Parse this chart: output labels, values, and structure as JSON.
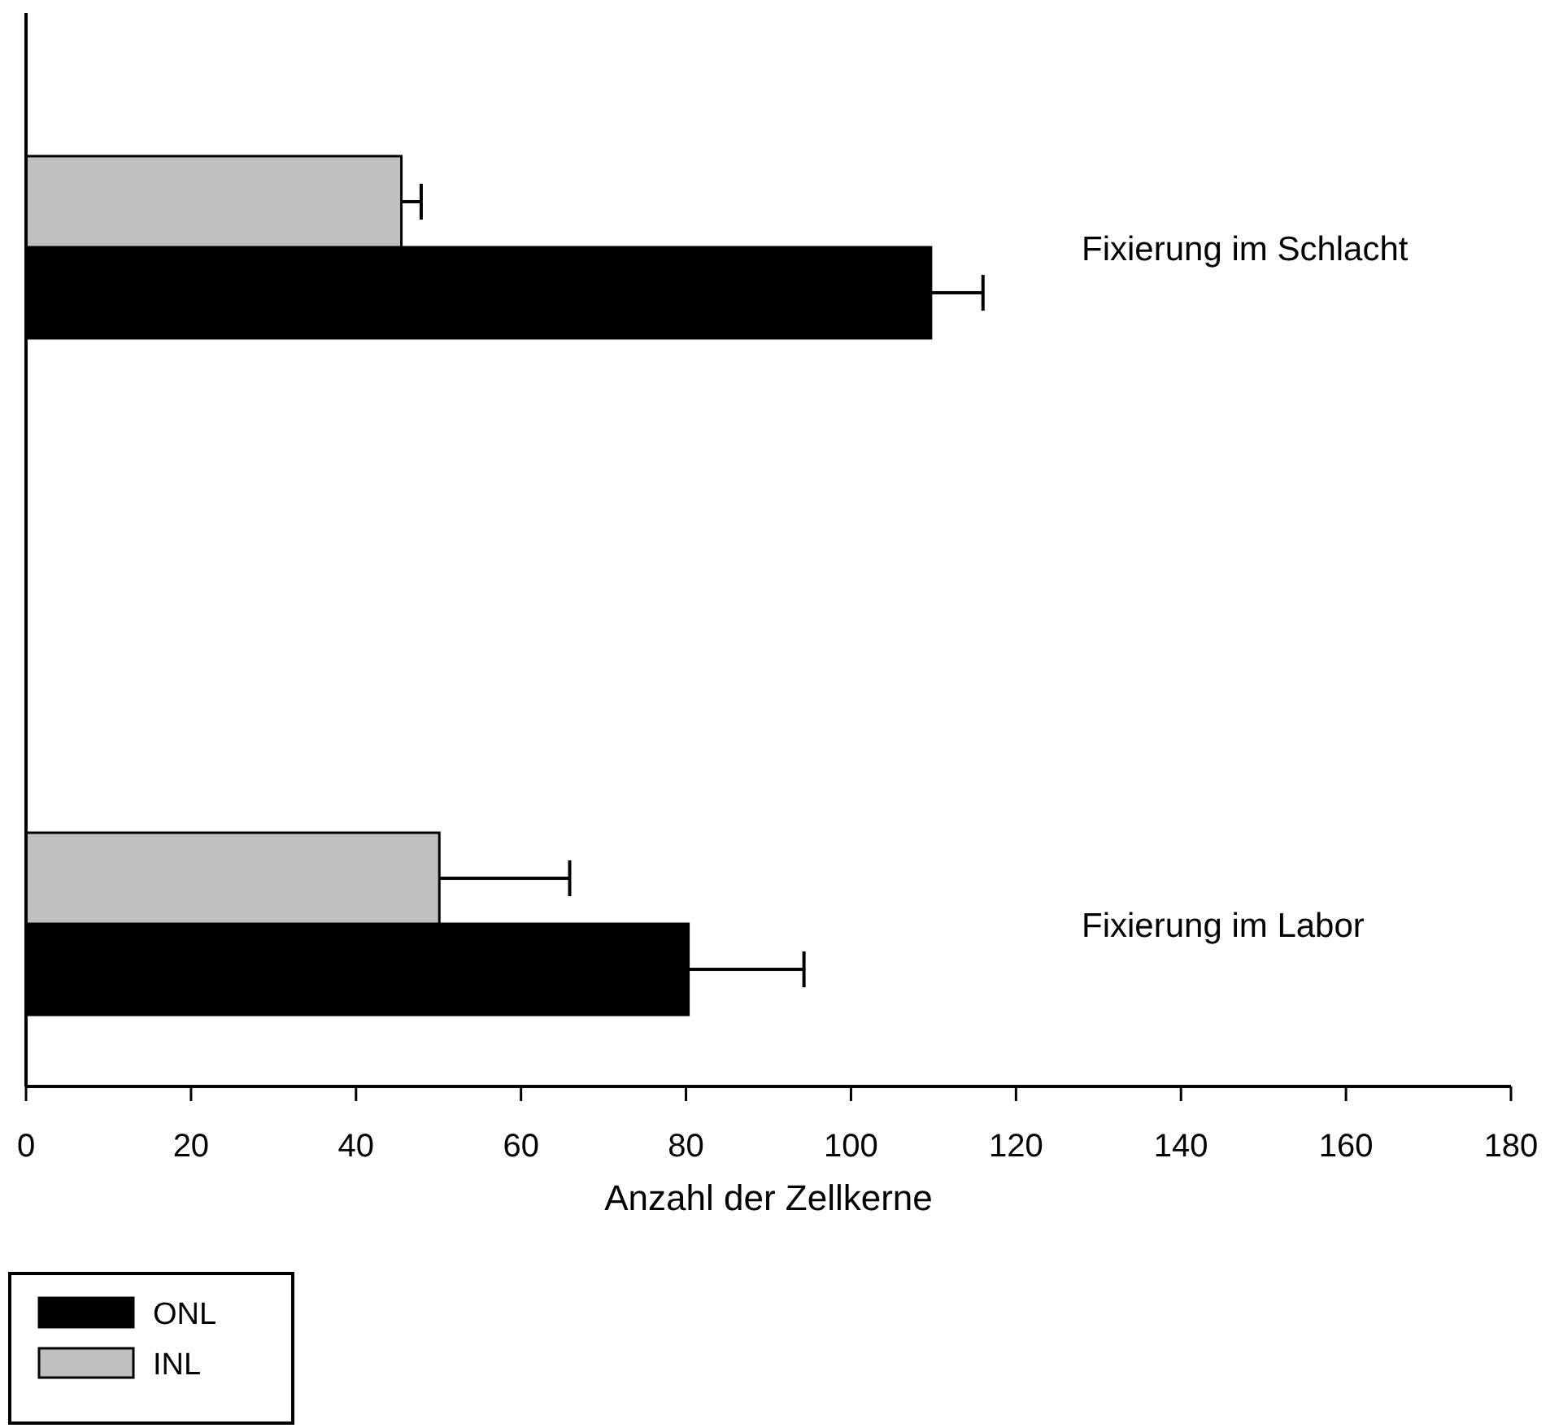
{
  "chart_data": {
    "type": "bar",
    "orientation": "horizontal",
    "xlabel": "Anzahl der Zellkerne",
    "categories": [
      "Fixierung im Schlacht",
      "Fixierung im Labor"
    ],
    "series": [
      {
        "name": "ONL",
        "color": "#000000",
        "values": [
          109.7,
          80.3
        ],
        "errors": [
          [
            109.7,
            116
          ],
          [
            80.3,
            94.3
          ]
        ]
      },
      {
        "name": "INL",
        "color": "#c0c0c0",
        "values": [
          45.5,
          50.1
        ],
        "errors": [
          [
            45.5,
            47.9
          ],
          [
            50.1,
            65.9
          ]
        ]
      }
    ],
    "xlim": [
      0,
      180
    ],
    "xticks": [
      0,
      20,
      40,
      60,
      80,
      100,
      120,
      140,
      160,
      180
    ],
    "tick_labels": "x",
    "legend": "bottom left"
  }
}
